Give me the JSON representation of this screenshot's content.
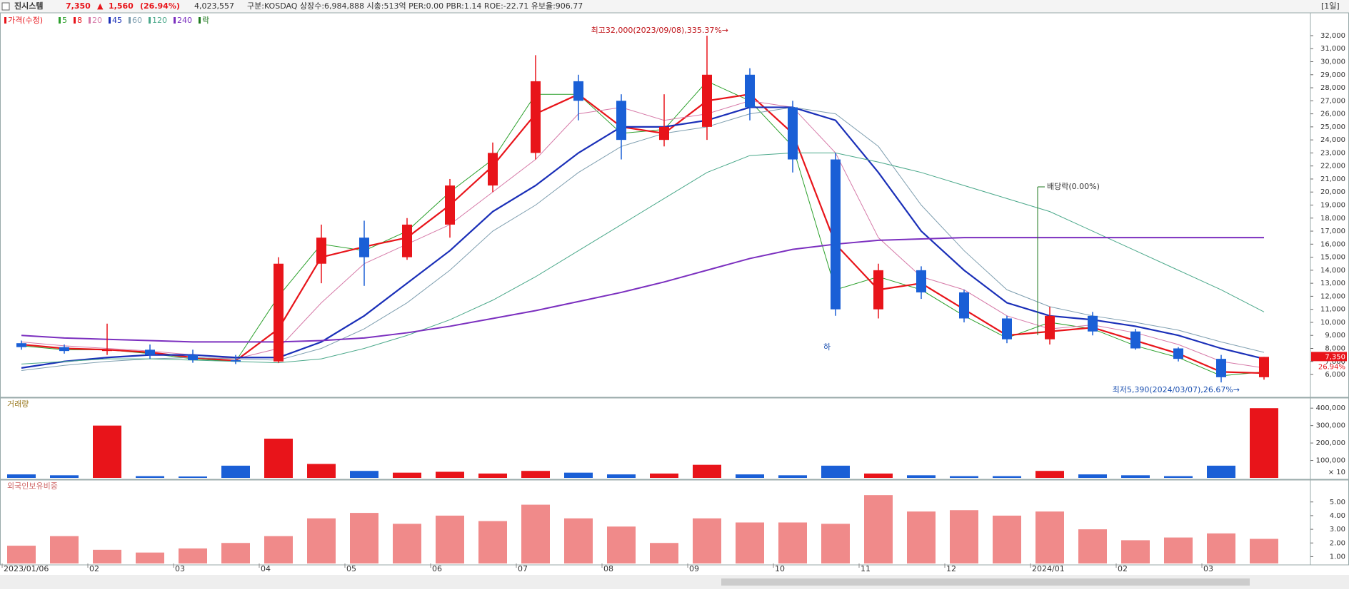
{
  "header": {
    "name": "진시스템",
    "price": "7,350",
    "arrow": "▲",
    "change": "1,560",
    "change_pct": "(26.94%)",
    "volume": "4,023,557",
    "info": "구분:KOSDAQ 상장수:6,984,888 시총:513억 PER:0.00 PBR:1.14 ROE:-22.71 유보율:906.77",
    "period": "[1일]"
  },
  "chart_data": [
    {
      "type": "candlestick",
      "legend_title": "가격(수정)",
      "categories": [
        "2023/01/06",
        null,
        "02",
        null,
        "03",
        null,
        "04",
        null,
        "05",
        null,
        "06",
        null,
        "07",
        null,
        "08",
        null,
        "09",
        null,
        "10",
        null,
        "11",
        null,
        "12",
        null,
        "2024/01",
        null,
        "02",
        null,
        "03",
        null
      ],
      "open": [
        8400,
        8100,
        7800,
        7900,
        7500,
        7100,
        7000,
        14500,
        16500,
        15000,
        17500,
        20500,
        23000,
        28500,
        27000,
        24000,
        25000,
        29000,
        26500,
        22500,
        11000,
        14000,
        12300,
        10300,
        8700,
        10500,
        9300,
        8000,
        7200,
        5790
      ],
      "high": [
        8600,
        8300,
        9900,
        8300,
        7900,
        7500,
        15000,
        17500,
        17800,
        18000,
        21000,
        23800,
        30500,
        29000,
        27500,
        27500,
        32000,
        29500,
        27000,
        23000,
        14500,
        14300,
        12500,
        10500,
        11200,
        10800,
        9500,
        8100,
        7500,
        7350
      ],
      "low": [
        7900,
        7600,
        7500,
        7200,
        6900,
        6800,
        6900,
        13000,
        12800,
        14800,
        16500,
        20000,
        22500,
        25500,
        22500,
        23500,
        24000,
        25500,
        21500,
        10500,
        10300,
        11800,
        10000,
        8400,
        8300,
        9000,
        7900,
        7000,
        5390,
        5600
      ],
      "close": [
        8100,
        7800,
        7900,
        7500,
        7100,
        7000,
        14500,
        16500,
        15000,
        17500,
        20500,
        23000,
        28500,
        27000,
        24000,
        25000,
        29000,
        26500,
        22500,
        11000,
        14000,
        12300,
        10300,
        8700,
        10500,
        9300,
        8000,
        7200,
        5790,
        7350
      ],
      "up_color": "#e8141a",
      "down_color": "#1a5fd6",
      "series": [
        {
          "name": "5",
          "color": "#2ca02c",
          "width": 1,
          "values": [
            8200,
            7900,
            7900,
            7600,
            7200,
            7000,
            12000,
            16000,
            15500,
            17000,
            20000,
            22500,
            27500,
            27500,
            24500,
            24800,
            28500,
            27000,
            23500,
            12500,
            13500,
            12500,
            10500,
            8800,
            10000,
            9500,
            8200,
            7300,
            5900,
            6200
          ]
        },
        {
          "name": "8",
          "color": "#e8141a",
          "width": 2.2,
          "values": [
            8300,
            8000,
            7900,
            7700,
            7300,
            7050,
            9500,
            15000,
            15800,
            16500,
            19000,
            22000,
            26000,
            27500,
            25000,
            24500,
            27000,
            27500,
            24500,
            16000,
            12500,
            13000,
            11000,
            9000,
            9300,
            9600,
            8600,
            7600,
            6200,
            6100
          ]
        },
        {
          "name": "20",
          "color": "#d67aa8",
          "width": 1,
          "values": [
            8500,
            8200,
            8000,
            7800,
            7500,
            7200,
            8000,
            11500,
            14500,
            16000,
            17500,
            20000,
            22500,
            26000,
            26500,
            25500,
            26000,
            27000,
            26500,
            23000,
            16500,
            13500,
            12500,
            10500,
            9500,
            9800,
            9200,
            8300,
            7000,
            6500
          ]
        },
        {
          "name": "45",
          "color": "#1a2fb8",
          "width": 2.2,
          "values": [
            6500,
            7000,
            7300,
            7500,
            7500,
            7300,
            7300,
            8500,
            10500,
            13000,
            15500,
            18500,
            20500,
            23000,
            25000,
            25000,
            25500,
            26500,
            26500,
            25500,
            21500,
            17000,
            14000,
            11500,
            10500,
            10200,
            9700,
            9000,
            8000,
            7200
          ]
        },
        {
          "name": "60",
          "color": "#7f9fb0",
          "width": 1,
          "values": [
            6300,
            6700,
            7000,
            7200,
            7300,
            7200,
            7100,
            8000,
            9500,
            11500,
            14000,
            17000,
            19000,
            21500,
            23500,
            24500,
            25000,
            26000,
            26500,
            26000,
            23500,
            19000,
            15500,
            12500,
            11200,
            10500,
            10000,
            9400,
            8500,
            7700
          ]
        },
        {
          "name": "120",
          "color": "#4aa88a",
          "width": 1,
          "values": [
            6800,
            7000,
            7200,
            7200,
            7100,
            7000,
            6900,
            7200,
            8000,
            9000,
            10200,
            11700,
            13500,
            15500,
            17500,
            19500,
            21500,
            22800,
            23000,
            23000,
            22300,
            21500,
            20500,
            19500,
            18500,
            17000,
            15500,
            14000,
            12500,
            10800
          ]
        },
        {
          "name": "240",
          "color": "#7b2fbf",
          "width": 2,
          "values": [
            9000,
            8800,
            8700,
            8600,
            8500,
            8500,
            8500,
            8600,
            8800,
            9200,
            9700,
            10300,
            10900,
            11600,
            12300,
            13100,
            14000,
            14900,
            15600,
            16000,
            16300,
            16400,
            16500,
            16500,
            16500,
            16500,
            16500,
            16500,
            16500,
            16500
          ]
        }
      ],
      "legend_extra": {
        "name": "락",
        "color": "#1f7a1f"
      },
      "ylim": [
        4360,
        33640
      ],
      "yticks": [
        {
          "value": 6000,
          "label": "6,000"
        },
        {
          "value": 7000,
          "label": "7,000"
        },
        {
          "value": 8000,
          "label": "8,000"
        },
        {
          "value": 9000,
          "label": "9,000"
        },
        {
          "value": 10000,
          "label": "10,000"
        },
        {
          "value": 11000,
          "label": "11,000"
        },
        {
          "value": 12000,
          "label": "12,000"
        },
        {
          "value": 13000,
          "label": "13,000"
        },
        {
          "value": 14000,
          "label": "14,000"
        },
        {
          "value": 15000,
          "label": "15,000"
        },
        {
          "value": 16000,
          "label": "16,000"
        },
        {
          "value": 17000,
          "label": "17,000"
        },
        {
          "value": 18000,
          "label": "18,000"
        },
        {
          "value": 19000,
          "label": "19,000"
        },
        {
          "value": 20000,
          "label": "20,000"
        },
        {
          "value": 21000,
          "label": "21,000"
        },
        {
          "value": 22000,
          "label": "22,000"
        },
        {
          "value": 23000,
          "label": "23,000"
        },
        {
          "value": 24000,
          "label": "24,000"
        },
        {
          "value": 25000,
          "label": "25,000"
        },
        {
          "value": 26000,
          "label": "26,000"
        },
        {
          "value": 27000,
          "label": "27,000"
        },
        {
          "value": 28000,
          "label": "28,000"
        },
        {
          "value": 29000,
          "label": "29,000"
        },
        {
          "value": 30000,
          "label": "30,000"
        },
        {
          "value": 31000,
          "label": "31,000"
        },
        {
          "value": 32000,
          "label": "32,000"
        }
      ],
      "annotations": {
        "high_note": "최고32,000(2023/09/08),335.37%→",
        "low_note": "최저5,390(2024/03/07),26.67%→",
        "dividend": "배당락(0.00%)",
        "halt": "하"
      },
      "last_price_label": "7,350",
      "last_change_label": "26.94%"
    },
    {
      "type": "bar",
      "title": "거래량",
      "unit_note": "× 10",
      "values": [
        20000,
        15000,
        300000,
        10000,
        8000,
        70000,
        225000,
        80000,
        40000,
        30000,
        35000,
        25000,
        40000,
        30000,
        20000,
        25000,
        75000,
        20000,
        15000,
        70000,
        25000,
        15000,
        10000,
        10000,
        40000,
        20000,
        15000,
        10000,
        70000,
        400000
      ],
      "ylim": [
        0,
        450000
      ],
      "yticks": [
        {
          "value": 100000,
          "label": "100,000"
        },
        {
          "value": 200000,
          "label": "200,000"
        },
        {
          "value": 300000,
          "label": "300,000"
        },
        {
          "value": 400000,
          "label": "400,000"
        }
      ]
    },
    {
      "type": "bar",
      "title": "외국인보유비중",
      "color": "#f08a8a",
      "values": [
        1.8,
        2.5,
        1.5,
        1.3,
        1.6,
        2.0,
        2.5,
        3.8,
        4.2,
        3.4,
        4.0,
        3.6,
        4.8,
        3.8,
        3.2,
        2.0,
        3.8,
        3.5,
        3.5,
        3.4,
        5.5,
        4.3,
        4.4,
        4.0,
        4.3,
        3.0,
        2.2,
        2.4,
        2.7,
        2.3
      ],
      "ylim": [
        0.5,
        6.5
      ],
      "yticks": [
        {
          "value": 1,
          "label": "1.00"
        },
        {
          "value": 2,
          "label": "2.00"
        },
        {
          "value": 3,
          "label": "3.00"
        },
        {
          "value": 4,
          "label": "4.00"
        },
        {
          "value": 5,
          "label": "5.00"
        }
      ]
    }
  ]
}
